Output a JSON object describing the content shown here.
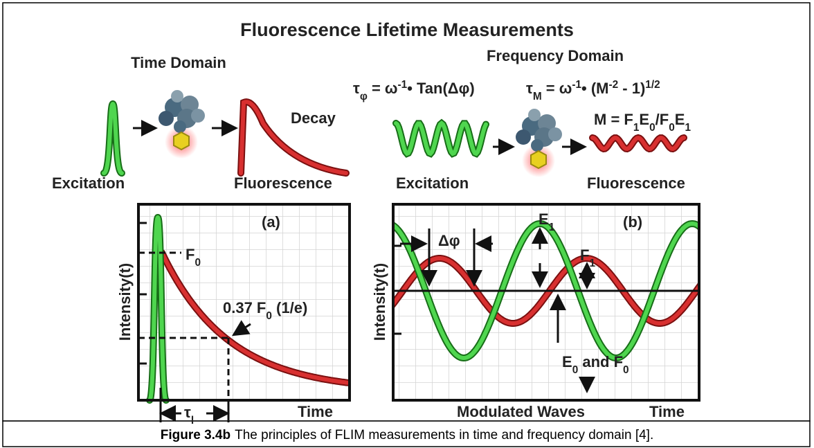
{
  "title": "Fluorescence Lifetime Measurements",
  "time_domain": {
    "heading": "Time Domain",
    "decay": "Decay",
    "excitation": "Excitation",
    "fluorescence": "Fluorescence"
  },
  "frequency_domain": {
    "heading": "Frequency Domain",
    "formula_phase": [
      {
        "text": "τ"
      },
      {
        "sub": "φ"
      },
      {
        "text": " = ω"
      },
      {
        "sup": "-1"
      },
      {
        "text": "• Tan(Δφ)"
      }
    ],
    "formula_modulation": [
      {
        "text": "τ"
      },
      {
        "sub": "M"
      },
      {
        "text": " = ω"
      },
      {
        "sup": "-1"
      },
      {
        "text": "• (M"
      },
      {
        "sup": "-2"
      },
      {
        "text": " - 1)"
      },
      {
        "sup": "1/2"
      }
    ],
    "formula_m": [
      {
        "text": "M = F"
      },
      {
        "sub": "1"
      },
      {
        "text": "E"
      },
      {
        "sub": "0"
      },
      {
        "text": "/F"
      },
      {
        "sub": "0"
      },
      {
        "text": "E"
      },
      {
        "sub": "1"
      }
    ],
    "excitation": "Excitation",
    "fluorescence": "Fluorescence"
  },
  "panel_a": {
    "label": "(a)",
    "y_axis": "Intensity(t)",
    "f0": [
      {
        "text": "F"
      },
      {
        "sub": "0"
      }
    ],
    "threshold": [
      {
        "text": "0.37 F"
      },
      {
        "sub": "0"
      },
      {
        "text": " (1/e)"
      }
    ],
    "x_axis": "Time",
    "tau": [
      {
        "text": "τ"
      },
      {
        "sub": "l"
      }
    ]
  },
  "panel_b": {
    "label": "(b)",
    "y_axis": "Intensity(t)",
    "delta_phi": "Δφ",
    "e1": [
      {
        "text": "E"
      },
      {
        "sub": "1"
      }
    ],
    "f1": [
      {
        "text": "F"
      },
      {
        "sub": "1"
      }
    ],
    "e0_f0": [
      {
        "text": "E"
      },
      {
        "sub": "0"
      },
      {
        "text": " and F"
      },
      {
        "sub": "0"
      }
    ],
    "x_axis_center": "Modulated Waves",
    "x_axis": "Time"
  },
  "caption": {
    "label": "Figure 3.4b",
    "text": "The principles of FLIM measurements in time and frequency domain [4]."
  }
}
